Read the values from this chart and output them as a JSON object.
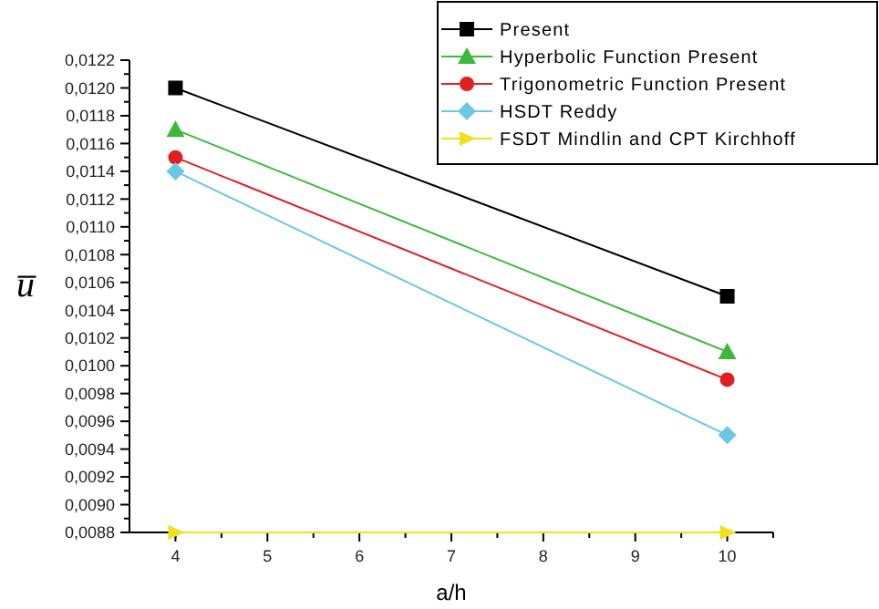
{
  "chart_data": {
    "type": "line",
    "xlabel": "a/h",
    "ylabel": "u̅",
    "x": [
      4,
      10
    ],
    "xlim": [
      3.5,
      10.5
    ],
    "xticks": [
      4,
      5,
      6,
      7,
      8,
      9,
      10
    ],
    "ylim": [
      0.0088,
      0.0122
    ],
    "yticks": [
      {
        "value": 0.0088,
        "label": "0,0088"
      },
      {
        "value": 0.009,
        "label": "0,0090"
      },
      {
        "value": 0.0092,
        "label": "0,0092"
      },
      {
        "value": 0.0094,
        "label": "0,0094"
      },
      {
        "value": 0.0096,
        "label": "0,0096"
      },
      {
        "value": 0.0098,
        "label": "0,0098"
      },
      {
        "value": 0.01,
        "label": "0,0100"
      },
      {
        "value": 0.0102,
        "label": "0,0102"
      },
      {
        "value": 0.0104,
        "label": "0,0104"
      },
      {
        "value": 0.0106,
        "label": "0,0106"
      },
      {
        "value": 0.0108,
        "label": "0,0108"
      },
      {
        "value": 0.011,
        "label": "0,0110"
      },
      {
        "value": 0.0112,
        "label": "0,0112"
      },
      {
        "value": 0.0114,
        "label": "0,0114"
      },
      {
        "value": 0.0116,
        "label": "0,0116"
      },
      {
        "value": 0.0118,
        "label": "0,0118"
      },
      {
        "value": 0.012,
        "label": "0,0120"
      },
      {
        "value": 0.0122,
        "label": "0,0122"
      }
    ],
    "legend": "top right",
    "grid": false,
    "series": [
      {
        "name": "Present",
        "color": "#000000",
        "marker": "square",
        "values": [
          0.012,
          0.0105
        ]
      },
      {
        "name": "Hyperbolic Function Present",
        "color": "#3cb83c",
        "marker": "triangle",
        "values": [
          0.0117,
          0.0101
        ]
      },
      {
        "name": "Trigonometric Function Present",
        "color": "#e02020",
        "marker": "circle",
        "values": [
          0.0115,
          0.0099
        ]
      },
      {
        "name": "HSDT Reddy",
        "color": "#6cc8e0",
        "marker": "diamond",
        "values": [
          0.0114,
          0.0095
        ]
      },
      {
        "name": "FSDT Mindlin and CPT Kirchhoff",
        "color": "#f0e020",
        "marker": "triangle-right",
        "values": [
          0.0088,
          0.0088
        ]
      }
    ]
  }
}
